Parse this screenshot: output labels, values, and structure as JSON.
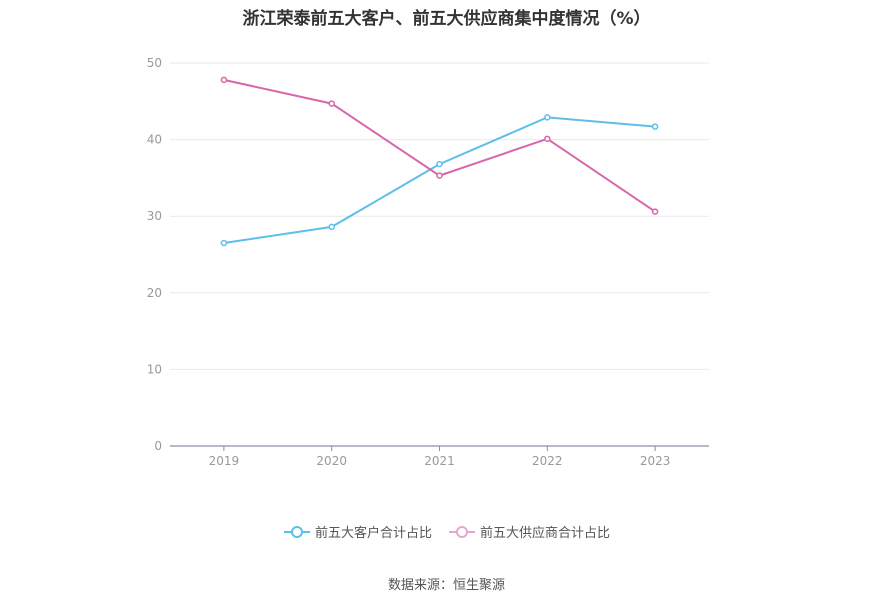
{
  "chart_data": {
    "type": "line",
    "title": "浙江荣泰前五大客户、前五大供应商集中度情况（%）",
    "categories": [
      "2019",
      "2020",
      "2021",
      "2022",
      "2023"
    ],
    "ylim": [
      0,
      50
    ],
    "yticks": [
      "0",
      "10",
      "20",
      "30",
      "40",
      "50"
    ],
    "grid": true,
    "legend_position": "bottom",
    "series": [
      {
        "name": "前五大客户合计占比",
        "color": "#5bbfea",
        "values": [
          26.5,
          28.6,
          36.8,
          42.9,
          41.7
        ]
      },
      {
        "name": "前五大供应商合计占比",
        "color": "#d966a9",
        "values": [
          47.8,
          44.7,
          35.3,
          40.1,
          30.6
        ]
      }
    ]
  },
  "source": "数据来源：恒生聚源"
}
